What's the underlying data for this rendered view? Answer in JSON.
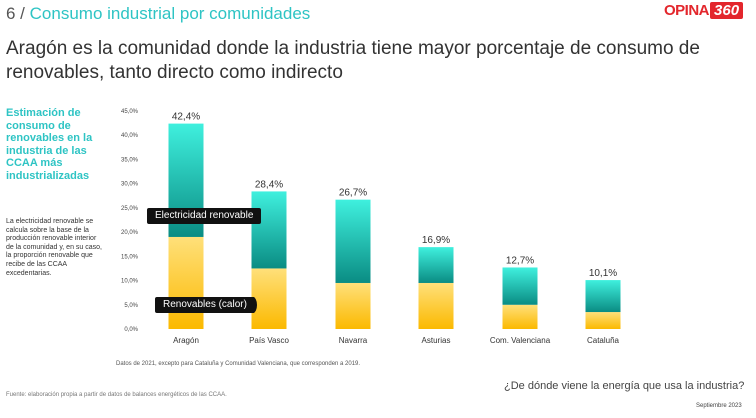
{
  "header": {
    "section_number": "6 /",
    "section_name": "Consumo industrial por comunidades",
    "logo_text": "OPINA",
    "logo_badge": "360"
  },
  "headline": "Aragón es la comunidad donde la industria tiene mayor porcentaje de consumo de renovables, tanto directo como indirecto",
  "sidebar": {
    "title": "Estimación de consumo de renovables en la industria de las CCAA más industrializadas",
    "text": "La electricidad renovable se calcula sobre la base de la producción renovable interior de la comunidad y, en su caso, la proporción renovable que recibe de las CCAA excedentarias."
  },
  "chart_data": {
    "type": "bar",
    "stacked": true,
    "categories": [
      "Aragón",
      "País Vasco",
      "Navarra",
      "Asturias",
      "Com. Valenciana",
      "Cataluña"
    ],
    "totals_labels": [
      "42,4%",
      "28,4%",
      "26,7%",
      "16,9%",
      "12,7%",
      "10,1%"
    ],
    "totals": [
      42.4,
      28.4,
      26.7,
      16.9,
      12.7,
      10.1
    ],
    "series": [
      {
        "name": "Renovables (calor)",
        "values": [
          19.0,
          12.5,
          9.5,
          9.5,
          5.0,
          3.5
        ],
        "color_top": "#ffe07a",
        "color_bottom": "#fbb900"
      },
      {
        "name": "Electricidad renovable",
        "values": [
          23.4,
          15.9,
          17.2,
          7.4,
          7.7,
          6.6
        ],
        "color_top": "#3ff0de",
        "color_bottom": "#0a8c83"
      }
    ],
    "y_ticks": [
      "0,0%",
      "5,0%",
      "10,0%",
      "15,0%",
      "20,0%",
      "25,0%",
      "30,0%",
      "35,0%",
      "40,0%",
      "45,0%"
    ],
    "ylim": [
      0,
      45
    ],
    "grid": false
  },
  "footer": {
    "note": "Datos de 2021, excepto para Cataluña y Comunidad Valenciana, que corresponden a 2019.",
    "source": "Fuente: elaboración propia a partir de datos de balances energéticos de las CCAA.",
    "question": "¿De dónde viene la energía que usa la industria?",
    "date": "Septiembre 2023"
  }
}
